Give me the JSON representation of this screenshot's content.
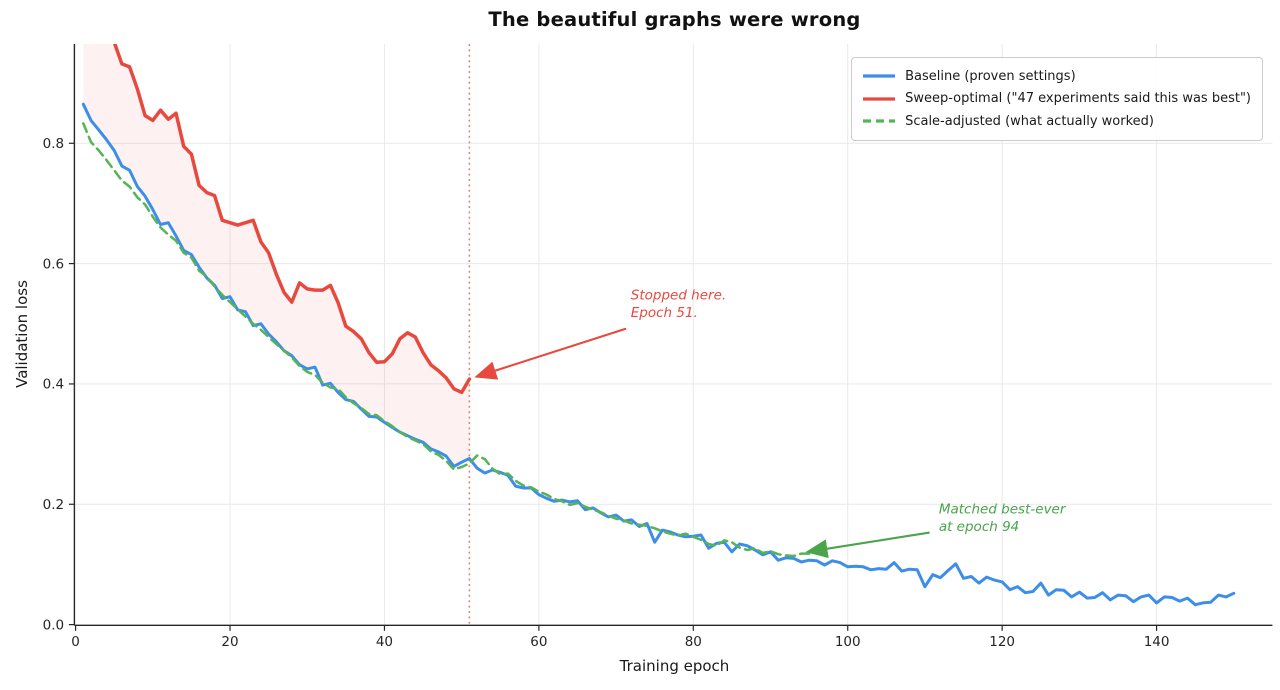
{
  "chart_data": {
    "type": "line",
    "title": "The beautiful graphs were wrong",
    "xlabel": "Training epoch",
    "ylabel": "Validation loss",
    "xlim": [
      0,
      155
    ],
    "ylim": [
      0,
      0.965
    ],
    "x_ticks": [
      0,
      20,
      40,
      60,
      80,
      100,
      120,
      140
    ],
    "y_ticks": [
      0.0,
      0.2,
      0.4,
      0.6,
      0.8
    ],
    "y_tick_labels": [
      "0.0",
      "0.2",
      "0.4",
      "0.6",
      "0.8"
    ],
    "grid": true,
    "grid_color": "#e9e9e9",
    "axis_color": "#262626",
    "legend_position": "upper right",
    "series": [
      {
        "name": "Baseline (proven settings)",
        "color": "#3c8ee8",
        "line_style": "solid",
        "line_width": 3,
        "x_start": 1,
        "values": [
          0.865,
          0.838,
          0.822,
          0.806,
          0.788,
          0.762,
          0.755,
          0.728,
          0.712,
          0.69,
          0.665,
          0.668,
          0.646,
          0.622,
          0.615,
          0.594,
          0.576,
          0.564,
          0.542,
          0.545,
          0.523,
          0.52,
          0.497,
          0.5,
          0.483,
          0.47,
          0.455,
          0.447,
          0.432,
          0.425,
          0.428,
          0.398,
          0.401,
          0.386,
          0.374,
          0.371,
          0.358,
          0.346,
          0.345,
          0.336,
          0.328,
          0.32,
          0.314,
          0.308,
          0.303,
          0.292,
          0.287,
          0.28,
          0.263,
          0.27,
          0.276,
          0.26,
          0.252,
          0.257,
          0.253,
          0.248,
          0.23,
          0.227,
          0.227,
          0.216,
          0.21,
          0.205,
          0.207,
          0.204,
          0.206,
          0.191,
          0.194,
          0.186,
          0.179,
          0.182,
          0.172,
          0.174,
          0.163,
          0.168,
          0.137,
          0.157,
          0.154,
          0.149,
          0.146,
          0.147,
          0.149,
          0.127,
          0.135,
          0.137,
          0.121,
          0.134,
          0.131,
          0.124,
          0.116,
          0.121,
          0.107,
          0.111,
          0.11,
          0.104,
          0.107,
          0.106,
          0.099,
          0.106,
          0.103,
          0.096,
          0.097,
          0.096,
          0.091,
          0.093,
          0.092,
          0.103,
          0.089,
          0.092,
          0.091,
          0.063,
          0.083,
          0.078,
          0.09,
          0.101,
          0.077,
          0.08,
          0.069,
          0.079,
          0.074,
          0.071,
          0.058,
          0.063,
          0.053,
          0.055,
          0.069,
          0.049,
          0.058,
          0.057,
          0.046,
          0.054,
          0.044,
          0.045,
          0.053,
          0.041,
          0.049,
          0.048,
          0.038,
          0.046,
          0.049,
          0.036,
          0.046,
          0.045,
          0.039,
          0.044,
          0.033,
          0.036,
          0.037,
          0.049,
          0.046,
          0.052
        ]
      },
      {
        "name": "Sweep-optimal (\"47 experiments said this was best\")",
        "color": "#e8493f",
        "line_style": "solid",
        "line_width": 3.5,
        "x_start": 1,
        "values": [
          1.05,
          1.02,
          1.0,
          0.985,
          0.968,
          0.932,
          0.927,
          0.89,
          0.846,
          0.838,
          0.855,
          0.84,
          0.85,
          0.795,
          0.782,
          0.73,
          0.718,
          0.713,
          0.672,
          0.668,
          0.664,
          0.668,
          0.672,
          0.636,
          0.618,
          0.582,
          0.552,
          0.536,
          0.568,
          0.558,
          0.556,
          0.556,
          0.564,
          0.535,
          0.496,
          0.487,
          0.475,
          0.452,
          0.436,
          0.437,
          0.45,
          0.475,
          0.485,
          0.478,
          0.452,
          0.432,
          0.422,
          0.41,
          0.392,
          0.386,
          0.408
        ]
      },
      {
        "name": "Scale-adjusted (what actually worked)",
        "color": "#56b356",
        "line_style": "dashed",
        "line_width": 2.5,
        "x_start": 1,
        "values": [
          0.833,
          0.802,
          0.788,
          0.772,
          0.755,
          0.738,
          0.728,
          0.71,
          0.698,
          0.678,
          0.66,
          0.648,
          0.638,
          0.618,
          0.61,
          0.588,
          0.578,
          0.562,
          0.548,
          0.536,
          0.524,
          0.512,
          0.5,
          0.49,
          0.478,
          0.466,
          0.455,
          0.444,
          0.43,
          0.42,
          0.415,
          0.402,
          0.394,
          0.392,
          0.378,
          0.368,
          0.36,
          0.35,
          0.348,
          0.338,
          0.33,
          0.32,
          0.312,
          0.306,
          0.3,
          0.288,
          0.282,
          0.272,
          0.258,
          0.262,
          0.268,
          0.281,
          0.275,
          0.259,
          0.25,
          0.251,
          0.239,
          0.231,
          0.228,
          0.221,
          0.216,
          0.209,
          0.205,
          0.199,
          0.202,
          0.196,
          0.191,
          0.187,
          0.181,
          0.176,
          0.173,
          0.168,
          0.166,
          0.164,
          0.16,
          0.155,
          0.151,
          0.148,
          0.151,
          0.146,
          0.141,
          0.134,
          0.131,
          0.14,
          0.137,
          0.128,
          0.124,
          0.127,
          0.119,
          0.122,
          0.117,
          0.115,
          0.114,
          0.118,
          0.118
        ]
      }
    ],
    "fill_between": {
      "upper_series": 1,
      "lower_series": 0,
      "x_range": [
        1,
        51
      ],
      "color": "rgba(231,74,60,0.07)"
    },
    "vline": {
      "x": 51,
      "color": "#ef8177",
      "style": "dotted"
    },
    "annotations": [
      {
        "id": "stopped-here",
        "lines": [
          "Stopped here.",
          "Epoch 51."
        ],
        "color": "#e8493f",
        "text_xy": [
          71.9,
          0.56
        ],
        "tail_xy": [
          71.3,
          0.492
        ],
        "tip_xy": [
          51.9,
          0.412
        ]
      },
      {
        "id": "matched-best",
        "lines": [
          "Matched best-ever",
          "at epoch 94"
        ],
        "color": "#4aa44a",
        "text_xy": [
          111.8,
          0.205
        ],
        "tail_xy": [
          110.6,
          0.153
        ],
        "tip_xy": [
          94.8,
          0.121
        ]
      }
    ]
  }
}
